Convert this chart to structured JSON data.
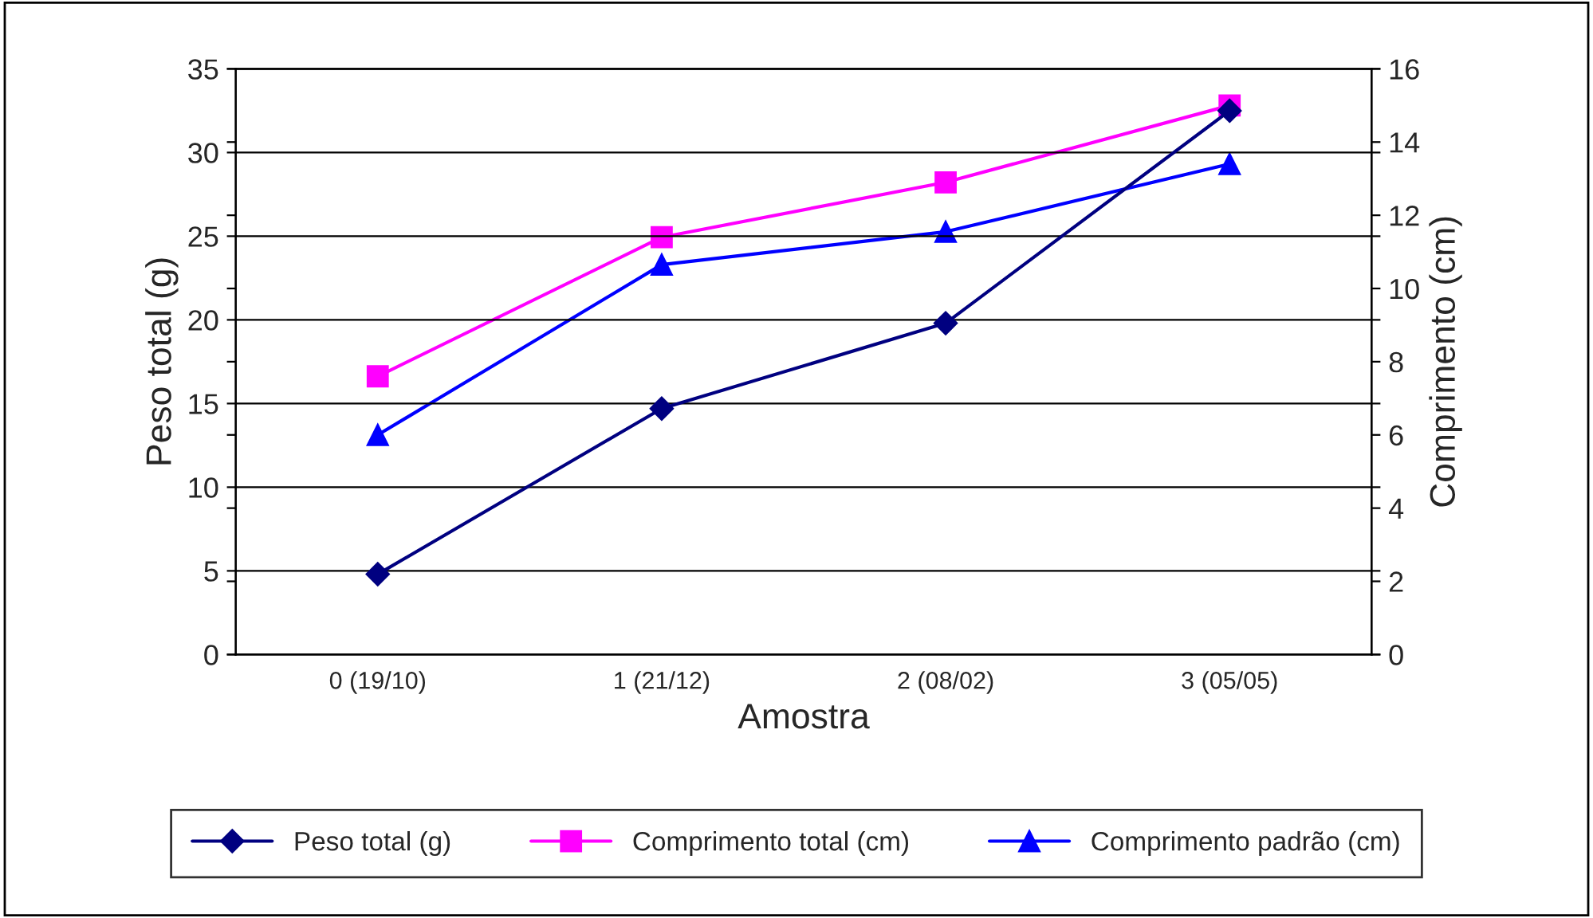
{
  "chart_data": {
    "type": "line",
    "xlabel": "Amostra",
    "ylabel": "Peso total (g)",
    "y2label": "Comprimento (cm)",
    "categories": [
      "0 (19/10)",
      "1 (21/12)",
      "2 (08/02)",
      "3 (05/05)"
    ],
    "series": [
      {
        "name": "Peso total (g)",
        "color": "#000080",
        "marker": "diamond",
        "values": [
          4.8,
          14.7,
          19.8,
          32.5
        ]
      },
      {
        "name": "Comprimento total (cm)",
        "color": "#ff00ff",
        "marker": "square",
        "axis": "y2",
        "values": [
          7.6,
          11.4,
          12.9,
          15.0
        ]
      },
      {
        "name": "Comprimento padrão (cm)",
        "color": "#0000ff",
        "marker": "triangle",
        "axis": "y2",
        "values": [
          6.0,
          10.65,
          11.55,
          13.4
        ]
      }
    ],
    "ylim": [
      0,
      35
    ],
    "yticks": [
      0,
      5,
      10,
      15,
      20,
      25,
      30,
      35
    ],
    "y2lim": [
      0,
      16
    ],
    "y2ticks": [
      0,
      2,
      4,
      6,
      8,
      10,
      12,
      14,
      16
    ],
    "grid": "y",
    "legend": "bottom",
    "line_style": "solid"
  }
}
